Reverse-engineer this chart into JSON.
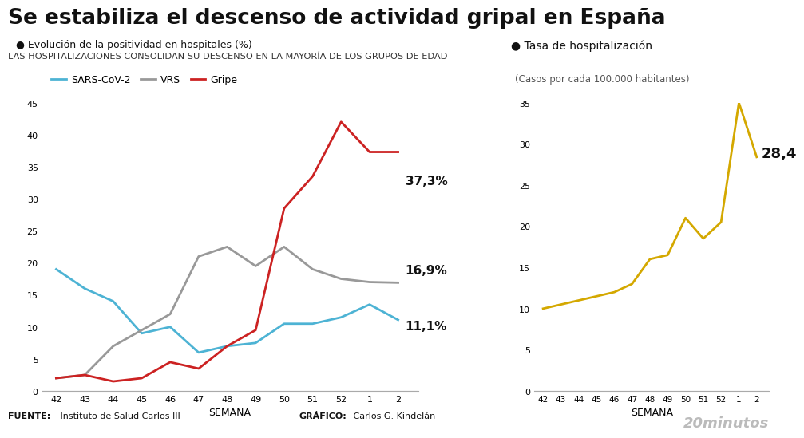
{
  "title": "Se estabiliza el descenso de actividad gripal en España",
  "subtitle": "LAS HOSPITALIZACIONES CONSOLIDAN SU DESCENSO EN LA MAYORÍA DE LOS GRUPOS DE EDAD",
  "left_chart_label": "● Evolución de la positividad en hospitales (%)",
  "right_chart_label": "● Tasa de hospitalización",
  "right_chart_sublabel": "(Casos por cada 100.000 habitantes)",
  "xlabel": "SEMANA",
  "week_labels": [
    "42",
    "43",
    "44",
    "45",
    "46",
    "47",
    "48",
    "49",
    "50",
    "51",
    "52",
    "1",
    "2"
  ],
  "sars": [
    19.0,
    16.0,
    14.0,
    9.0,
    10.0,
    6.0,
    7.0,
    7.5,
    10.5,
    10.5,
    11.5,
    13.5,
    11.1
  ],
  "vrs": [
    2.0,
    2.5,
    7.0,
    9.5,
    12.0,
    21.0,
    22.5,
    19.5,
    22.5,
    19.0,
    17.5,
    17.0,
    16.9
  ],
  "gripe": [
    2.0,
    2.5,
    1.5,
    2.0,
    4.5,
    3.5,
    7.0,
    9.5,
    28.5,
    33.5,
    42.0,
    37.3,
    37.3
  ],
  "hosp": [
    10.0,
    10.5,
    11.0,
    11.5,
    12.0,
    13.0,
    16.0,
    16.5,
    21.0,
    18.5,
    20.5,
    35.0,
    28.4
  ],
  "sars_color": "#4db3d4",
  "vrs_color": "#999999",
  "gripe_color": "#cc2222",
  "hosp_color": "#d4a800",
  "left_ylim": [
    0,
    45
  ],
  "right_ylim": [
    0,
    35
  ],
  "left_yticks": [
    0,
    5,
    10,
    15,
    20,
    25,
    30,
    35,
    40,
    45
  ],
  "right_yticks": [
    0,
    5,
    10,
    15,
    20,
    25,
    30,
    35
  ],
  "final_sars": "11,1%",
  "final_vrs": "16,9%",
  "final_gripe": "37,3%",
  "final_hosp": "28,4",
  "source_bold": "FUENTE:",
  "source_rest": " Instituto de Salud Carlos III",
  "graphic_bold": "GRÁFICO:",
  "graphic_rest": " Carlos G. Kindelán",
  "background_color": "#ffffff",
  "logo_text": "20minutos"
}
